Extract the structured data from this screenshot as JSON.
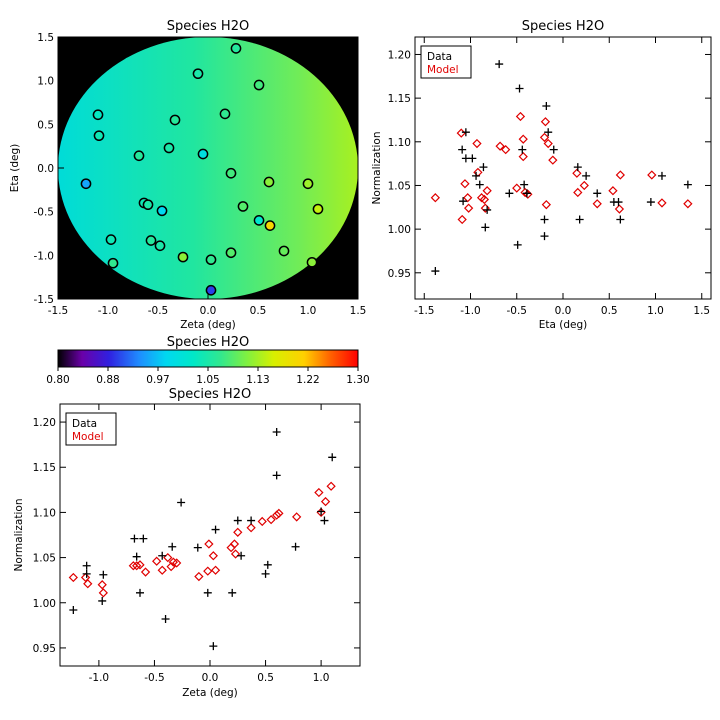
{
  "chart_data": [
    {
      "id": "map",
      "type": "scatter",
      "title": "Species H2O",
      "xlabel": "Zeta (deg)",
      "ylabel": "Eta (deg)",
      "xlim": [
        -1.5,
        1.5
      ],
      "ylim": [
        -1.5,
        1.5
      ],
      "xticks": [
        "-1.5",
        "-1.0",
        "-0.5",
        "0.0",
        "0.5",
        "1.0",
        "1.5"
      ],
      "yticks": [
        "-1.5",
        "-1.0",
        "-0.5",
        "0.0",
        "0.5",
        "1.0",
        "1.5"
      ],
      "background": "#000000",
      "field_radius": 1.5,
      "field_left_value": 1.03,
      "field_right_value": 1.14,
      "points": [
        {
          "x": 0.28,
          "y": 1.37,
          "v": 1.06
        },
        {
          "x": -0.1,
          "y": 1.08,
          "v": 1.05
        },
        {
          "x": 0.51,
          "y": 0.95,
          "v": 1.08
        },
        {
          "x": -1.1,
          "y": 0.61,
          "v": 1.03
        },
        {
          "x": -0.33,
          "y": 0.55,
          "v": 1.06
        },
        {
          "x": 0.17,
          "y": 0.62,
          "v": 1.07
        },
        {
          "x": -1.09,
          "y": 0.37,
          "v": 1.04
        },
        {
          "x": -0.39,
          "y": 0.23,
          "v": 1.05
        },
        {
          "x": -0.05,
          "y": 0.16,
          "v": 1.0
        },
        {
          "x": -0.69,
          "y": 0.14,
          "v": 1.06
        },
        {
          "x": -1.22,
          "y": -0.18,
          "v": 0.95
        },
        {
          "x": 0.23,
          "y": -0.06,
          "v": 1.08
        },
        {
          "x": 0.61,
          "y": -0.16,
          "v": 1.12
        },
        {
          "x": 1.0,
          "y": -0.18,
          "v": 1.13
        },
        {
          "x": -0.64,
          "y": -0.4,
          "v": 1.04
        },
        {
          "x": -0.6,
          "y": -0.42,
          "v": 1.05
        },
        {
          "x": -0.46,
          "y": -0.49,
          "v": 0.98
        },
        {
          "x": 0.35,
          "y": -0.44,
          "v": 1.09
        },
        {
          "x": 1.1,
          "y": -0.47,
          "v": 1.15
        },
        {
          "x": 0.51,
          "y": -0.6,
          "v": 1.02
        },
        {
          "x": 0.62,
          "y": -0.66,
          "v": 1.2
        },
        {
          "x": -0.97,
          "y": -0.82,
          "v": 1.04
        },
        {
          "x": -0.57,
          "y": -0.83,
          "v": 1.06
        },
        {
          "x": -0.48,
          "y": -0.89,
          "v": 1.05
        },
        {
          "x": 0.23,
          "y": -0.97,
          "v": 1.09
        },
        {
          "x": 0.76,
          "y": -0.95,
          "v": 1.1
        },
        {
          "x": -0.25,
          "y": -1.02,
          "v": 1.12
        },
        {
          "x": 0.03,
          "y": -1.05,
          "v": 1.07
        },
        {
          "x": -0.95,
          "y": -1.09,
          "v": 1.07
        },
        {
          "x": 1.04,
          "y": -1.08,
          "v": 1.12
        },
        {
          "x": 0.03,
          "y": -1.4,
          "v": 0.9
        }
      ]
    },
    {
      "id": "eta",
      "type": "scatter",
      "title": "Species H2O",
      "xlabel": "Eta (deg)",
      "ylabel": "Normalization",
      "xlim": [
        -1.6,
        1.6
      ],
      "ylim": [
        0.92,
        1.22
      ],
      "xticks": [
        -1.5,
        -1.0,
        -0.5,
        0.0,
        0.5,
        1.0,
        1.5
      ],
      "xticklabels": [
        "-1.5",
        "-1.0",
        "-0.5",
        "0.0",
        "0.5",
        "1.0",
        "1.5"
      ],
      "yticks": [
        0.95,
        1.0,
        1.05,
        1.1,
        1.15,
        1.2
      ],
      "yticklabels": [
        "0.95",
        "1.00",
        "1.05",
        "1.10",
        "1.15",
        "1.20"
      ],
      "legend": {
        "position": "top-left",
        "entries": [
          {
            "label": "Data",
            "color": "#000000"
          },
          {
            "label": "Model",
            "color": "#e00000"
          }
        ]
      },
      "data": [
        [
          -1.38,
          0.952
        ],
        [
          -1.08,
          1.032
        ],
        [
          -1.09,
          1.091
        ],
        [
          -1.05,
          1.111
        ],
        [
          -1.05,
          1.081
        ],
        [
          -0.98,
          1.081
        ],
        [
          -0.94,
          1.061
        ],
        [
          -0.9,
          1.051
        ],
        [
          -0.86,
          1.071
        ],
        [
          -0.84,
          1.002
        ],
        [
          -0.82,
          1.022
        ],
        [
          -0.69,
          1.189
        ],
        [
          -0.58,
          1.041
        ],
        [
          -0.49,
          0.982
        ],
        [
          -0.47,
          1.161
        ],
        [
          -0.44,
          1.091
        ],
        [
          -0.42,
          1.051
        ],
        [
          -0.39,
          1.041
        ],
        [
          -0.2,
          1.011
        ],
        [
          -0.1,
          1.091
        ],
        [
          -0.2,
          0.992
        ],
        [
          -0.16,
          1.111
        ],
        [
          -0.18,
          1.141
        ],
        [
          0.16,
          1.071
        ],
        [
          0.18,
          1.011
        ],
        [
          0.25,
          1.061
        ],
        [
          0.37,
          1.041
        ],
        [
          0.55,
          1.031
        ],
        [
          0.6,
          1.031
        ],
        [
          0.62,
          1.011
        ],
        [
          0.95,
          1.031
        ],
        [
          1.07,
          1.061
        ],
        [
          1.35,
          1.051
        ]
      ],
      "model": [
        [
          -1.38,
          1.036
        ],
        [
          -1.1,
          1.11
        ],
        [
          -1.09,
          1.011
        ],
        [
          -1.06,
          1.052
        ],
        [
          -1.03,
          1.036
        ],
        [
          -1.02,
          1.024
        ],
        [
          -0.93,
          1.098
        ],
        [
          -0.92,
          1.065
        ],
        [
          -0.88,
          1.036
        ],
        [
          -0.85,
          1.034
        ],
        [
          -0.82,
          1.044
        ],
        [
          -0.84,
          1.024
        ],
        [
          -0.68,
          1.095
        ],
        [
          -0.62,
          1.091
        ],
        [
          -0.5,
          1.047
        ],
        [
          -0.46,
          1.129
        ],
        [
          -0.43,
          1.083
        ],
        [
          -0.43,
          1.103
        ],
        [
          -0.41,
          1.042
        ],
        [
          -0.38,
          1.04
        ],
        [
          -0.2,
          1.105
        ],
        [
          -0.19,
          1.123
        ],
        [
          -0.18,
          1.028
        ],
        [
          -0.16,
          1.098
        ],
        [
          -0.11,
          1.079
        ],
        [
          0.15,
          1.064
        ],
        [
          0.16,
          1.042
        ],
        [
          0.23,
          1.05
        ],
        [
          0.37,
          1.029
        ],
        [
          0.54,
          1.044
        ],
        [
          0.61,
          1.023
        ],
        [
          0.62,
          1.062
        ],
        [
          0.96,
          1.062
        ],
        [
          1.07,
          1.03
        ],
        [
          1.35,
          1.029
        ]
      ]
    },
    {
      "id": "colorbar",
      "type": "heatmap",
      "title": "Species H2O",
      "range": [
        0.8,
        1.3
      ],
      "ticklabels": [
        "0.80",
        "0.88",
        "0.97",
        "1.05",
        "1.13",
        "1.22",
        "1.30"
      ]
    },
    {
      "id": "zeta",
      "type": "scatter",
      "title": "Species H2O",
      "xlabel": "Zeta (deg)",
      "ylabel": "Normalization",
      "xlim": [
        -1.35,
        1.35
      ],
      "ylim": [
        0.93,
        1.22
      ],
      "xticks": [
        -1.0,
        -0.5,
        0.0,
        0.5,
        1.0
      ],
      "xticklabels": [
        "-1.0",
        "-0.5",
        "0.0",
        "0.5",
        "1.0"
      ],
      "yticks": [
        0.95,
        1.0,
        1.05,
        1.1,
        1.15,
        1.2
      ],
      "yticklabels": [
        "0.95",
        "1.00",
        "1.05",
        "1.10",
        "1.15",
        "1.20"
      ],
      "legend": {
        "position": "top-left",
        "entries": [
          {
            "label": "Data",
            "color": "#000000"
          },
          {
            "label": "Model",
            "color": "#e00000"
          }
        ]
      },
      "data": [
        [
          -1.23,
          0.992
        ],
        [
          -1.11,
          1.041
        ],
        [
          -1.11,
          1.032
        ],
        [
          -0.96,
          1.031
        ],
        [
          -0.97,
          1.002
        ],
        [
          -0.68,
          1.071
        ],
        [
          -0.66,
          1.051
        ],
        [
          -0.6,
          1.071
        ],
        [
          -0.63,
          1.011
        ],
        [
          -0.43,
          1.052
        ],
        [
          -0.4,
          0.982
        ],
        [
          -0.34,
          1.062
        ],
        [
          -0.26,
          1.111
        ],
        [
          -0.11,
          1.061
        ],
        [
          -0.02,
          1.011
        ],
        [
          0.05,
          1.081
        ],
        [
          0.03,
          0.952
        ],
        [
          0.2,
          1.011
        ],
        [
          0.25,
          1.091
        ],
        [
          0.28,
          1.052
        ],
        [
          0.37,
          1.091
        ],
        [
          0.5,
          1.032
        ],
        [
          0.52,
          1.042
        ],
        [
          0.6,
          1.141
        ],
        [
          0.6,
          1.189
        ],
        [
          0.77,
          1.062
        ],
        [
          1.0,
          1.101
        ],
        [
          1.03,
          1.091
        ],
        [
          1.1,
          1.161
        ]
      ],
      "model": [
        [
          -1.23,
          1.028
        ],
        [
          -1.12,
          1.028
        ],
        [
          -1.1,
          1.021
        ],
        [
          -0.97,
          1.02
        ],
        [
          -0.96,
          1.011
        ],
        [
          -0.69,
          1.041
        ],
        [
          -0.66,
          1.041
        ],
        [
          -0.63,
          1.042
        ],
        [
          -0.58,
          1.034
        ],
        [
          -0.48,
          1.046
        ],
        [
          -0.43,
          1.036
        ],
        [
          -0.38,
          1.05
        ],
        [
          -0.35,
          1.04
        ],
        [
          -0.33,
          1.045
        ],
        [
          -0.3,
          1.044
        ],
        [
          -0.1,
          1.029
        ],
        [
          -0.01,
          1.065
        ],
        [
          -0.02,
          1.035
        ],
        [
          0.03,
          1.052
        ],
        [
          0.05,
          1.036
        ],
        [
          0.19,
          1.061
        ],
        [
          0.22,
          1.065
        ],
        [
          0.25,
          1.078
        ],
        [
          0.23,
          1.054
        ],
        [
          0.37,
          1.083
        ],
        [
          0.47,
          1.09
        ],
        [
          0.55,
          1.092
        ],
        [
          0.6,
          1.097
        ],
        [
          0.62,
          1.099
        ],
        [
          0.78,
          1.095
        ],
        [
          0.98,
          1.122
        ],
        [
          1.0,
          1.1
        ],
        [
          1.04,
          1.112
        ],
        [
          1.09,
          1.129
        ]
      ]
    }
  ]
}
